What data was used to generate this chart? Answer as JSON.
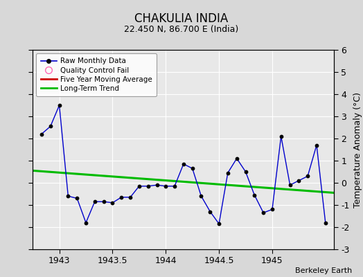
{
  "title": "CHAKULIA INDIA",
  "subtitle": "22.450 N, 86.700 E (India)",
  "ylabel": "Temperature Anomaly (°C)",
  "credit": "Berkeley Earth",
  "ylim": [
    -3,
    6
  ],
  "yticks": [
    -3,
    -2,
    -1,
    0,
    1,
    2,
    3,
    4,
    5,
    6
  ],
  "xlim": [
    1942.75,
    1945.58
  ],
  "xticks": [
    1943,
    1943.5,
    1944,
    1944.5,
    1945
  ],
  "bg_color": "#d8d8d8",
  "plot_bg_color": "#e8e8e8",
  "raw_x": [
    1942.833,
    1942.917,
    1943.0,
    1943.083,
    1943.167,
    1943.25,
    1943.333,
    1943.417,
    1943.5,
    1943.583,
    1943.667,
    1943.75,
    1943.833,
    1943.917,
    1944.0,
    1944.083,
    1944.167,
    1944.25,
    1944.333,
    1944.417,
    1944.5,
    1944.583,
    1944.667,
    1944.75,
    1944.833,
    1944.917,
    1945.0,
    1945.083,
    1945.167,
    1945.25,
    1945.333,
    1945.417,
    1945.5
  ],
  "raw_y": [
    2.2,
    2.55,
    3.5,
    -0.6,
    -0.7,
    -1.8,
    -0.85,
    -0.85,
    -0.9,
    -0.65,
    -0.65,
    -0.15,
    -0.15,
    -0.1,
    -0.15,
    -0.15,
    0.85,
    0.65,
    -0.6,
    -1.3,
    -1.85,
    0.45,
    1.1,
    0.5,
    -0.55,
    -1.35,
    -1.2,
    2.1,
    -0.1,
    0.1,
    0.3,
    1.7,
    -1.8
  ],
  "trend_x": [
    1942.75,
    1945.58
  ],
  "trend_y": [
    0.55,
    -0.45
  ],
  "raw_color": "#0000cc",
  "trend_color": "#00bb00",
  "mavg_color": "#cc0000",
  "grid_color": "#ffffff",
  "title_fontsize": 12,
  "subtitle_fontsize": 9,
  "tick_fontsize": 9,
  "credit_fontsize": 8
}
